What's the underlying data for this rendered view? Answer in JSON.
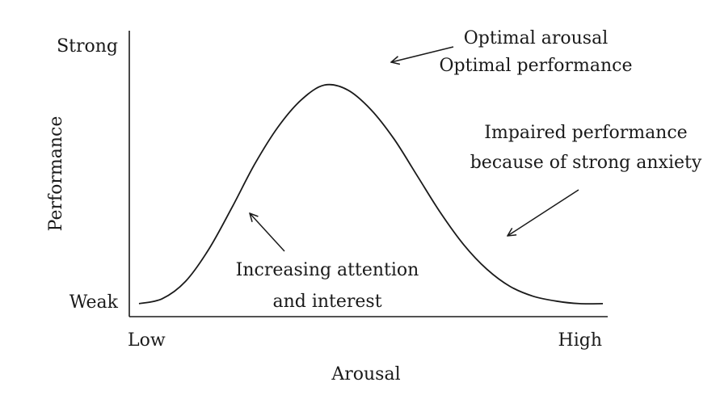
{
  "chart_data": {
    "type": "line",
    "title": "",
    "xlabel": "Arousal",
    "ylabel": "Performance",
    "x_tick_labels": [
      "Low",
      "High"
    ],
    "y_tick_labels": [
      "Weak",
      "Strong"
    ],
    "grid": false,
    "xlim": [
      0,
      1
    ],
    "ylim": [
      0,
      1
    ],
    "series": [
      {
        "x": [
          0,
          0.05,
          0.1,
          0.15,
          0.2,
          0.25,
          0.3,
          0.35,
          0.4,
          0.45,
          0.5,
          0.55,
          0.6,
          0.65,
          0.7,
          0.75,
          0.8,
          0.85,
          0.9,
          0.95,
          1.0
        ],
        "y": [
          0.03,
          0.05,
          0.12,
          0.25,
          0.42,
          0.6,
          0.75,
          0.86,
          0.92,
          0.9,
          0.82,
          0.7,
          0.55,
          0.4,
          0.27,
          0.17,
          0.1,
          0.06,
          0.04,
          0.03,
          0.03
        ]
      }
    ],
    "annotations": [
      {
        "lines": [
          "Optimal arousal",
          "Optimal performance"
        ]
      },
      {
        "lines": [
          "Impaired performance",
          "because of strong anxiety"
        ]
      },
      {
        "lines": [
          "Increasing attention",
          "and interest"
        ]
      }
    ]
  }
}
